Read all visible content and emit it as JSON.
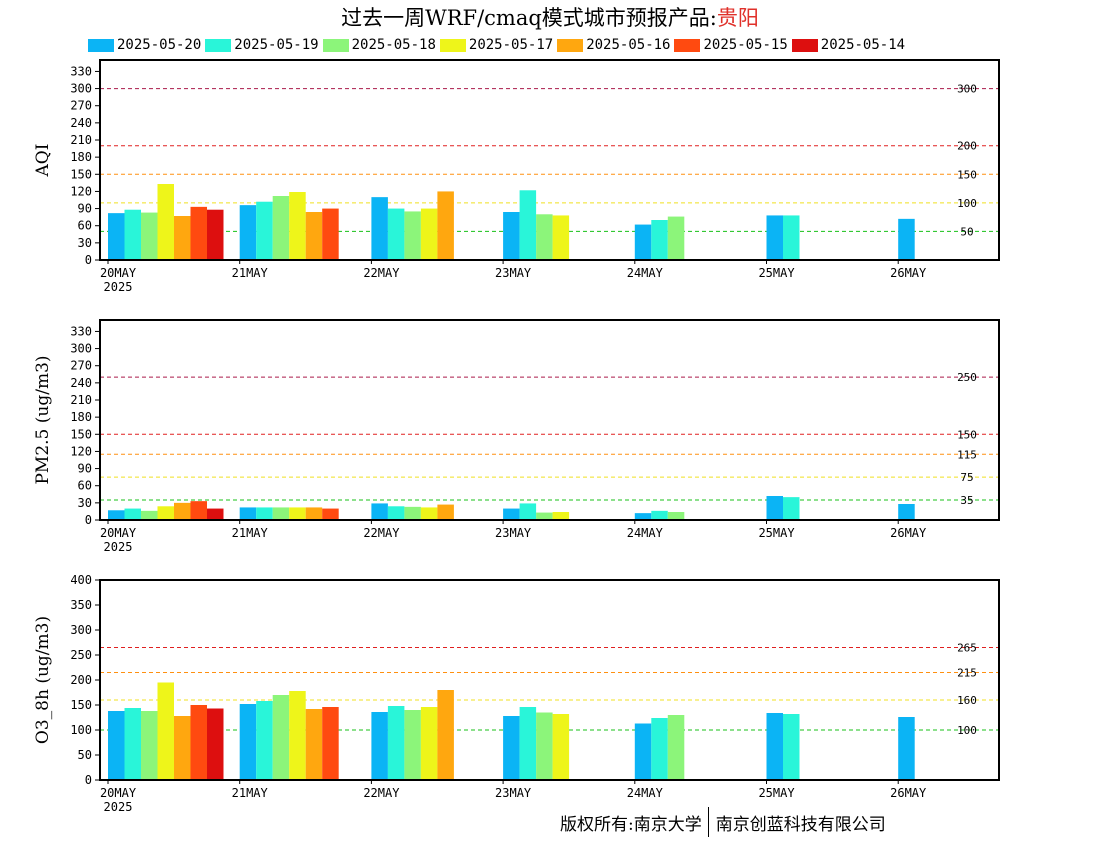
{
  "title": {
    "prefix": "过去一周WRF/cmaq模式城市预报产品:",
    "city": "贵阳"
  },
  "copyright": {
    "left": "版权所有:南京大学",
    "right": "南京创蓝科技有限公司"
  },
  "legend": [
    {
      "label": "2025-05-20",
      "color": "#0bb4f5"
    },
    {
      "label": "2025-05-19",
      "color": "#29f5d9"
    },
    {
      "label": "2025-05-18",
      "color": "#8cf57a"
    },
    {
      "label": "2025-05-17",
      "color": "#eef51a"
    },
    {
      "label": "2025-05-16",
      "color": "#ffa70f"
    },
    {
      "label": "2025-05-15",
      "color": "#ff4a10"
    },
    {
      "label": "2025-05-14",
      "color": "#dd0f0f"
    }
  ],
  "chart_data": [
    {
      "type": "bar",
      "ylabel": "AQI",
      "ylim": [
        0,
        350
      ],
      "yticks": [
        0,
        30,
        60,
        90,
        120,
        150,
        180,
        210,
        240,
        270,
        300,
        330
      ],
      "xlabels": [
        "20MAY",
        "21MAY",
        "22MAY",
        "23MAY",
        "24MAY",
        "25MAY",
        "26MAY"
      ],
      "x_year_label": "2025",
      "refs": [
        {
          "value": 300,
          "label": "300",
          "color": "#aa1a4a"
        },
        {
          "value": 200,
          "label": "200",
          "color": "#e02020"
        },
        {
          "value": 150,
          "label": "150",
          "color": "#ff9010"
        },
        {
          "value": 100,
          "label": "100",
          "color": "#f0e020"
        },
        {
          "value": 50,
          "label": "50",
          "color": "#18c018"
        }
      ],
      "days": [
        [
          82,
          88,
          83,
          133,
          77,
          93,
          88
        ],
        [
          96,
          102,
          112,
          119,
          84,
          90
        ],
        [
          110,
          90,
          85,
          90,
          120
        ],
        [
          84,
          122,
          80,
          78
        ],
        [
          62,
          70,
          76
        ],
        [
          78,
          78
        ],
        [
          72
        ]
      ]
    },
    {
      "type": "bar",
      "ylabel": "PM2.5 (ug/m3)",
      "ylim": [
        0,
        350
      ],
      "yticks": [
        0,
        30,
        60,
        90,
        120,
        150,
        180,
        210,
        240,
        270,
        300,
        330
      ],
      "xlabels": [
        "20MAY",
        "21MAY",
        "22MAY",
        "23MAY",
        "24MAY",
        "25MAY",
        "26MAY"
      ],
      "x_year_label": "2025",
      "refs": [
        {
          "value": 250,
          "label": "250",
          "color": "#aa1a4a"
        },
        {
          "value": 150,
          "label": "150",
          "color": "#e02020"
        },
        {
          "value": 115,
          "label": "115",
          "color": "#ff9010"
        },
        {
          "value": 75,
          "label": "75",
          "color": "#f0e020"
        },
        {
          "value": 35,
          "label": "35",
          "color": "#18c018"
        }
      ],
      "days": [
        [
          17,
          20,
          16,
          24,
          30,
          33,
          20
        ],
        [
          22,
          22,
          22,
          22,
          22,
          20
        ],
        [
          29,
          24,
          23,
          22,
          27
        ],
        [
          20,
          29,
          13,
          14
        ],
        [
          12,
          16,
          14
        ],
        [
          42,
          40
        ],
        [
          28
        ]
      ]
    },
    {
      "type": "bar",
      "ylabel": "O3_8h (ug/m3)",
      "ylim": [
        0,
        400
      ],
      "yticks": [
        0,
        50,
        100,
        150,
        200,
        250,
        300,
        350,
        400
      ],
      "xlabels": [
        "20MAY",
        "21MAY",
        "22MAY",
        "23MAY",
        "24MAY",
        "25MAY",
        "26MAY"
      ],
      "x_year_label": "2025",
      "refs": [
        {
          "value": 265,
          "label": "265",
          "color": "#e02020"
        },
        {
          "value": 215,
          "label": "215",
          "color": "#ff9010"
        },
        {
          "value": 160,
          "label": "160",
          "color": "#f0e020"
        },
        {
          "value": 100,
          "label": "100",
          "color": "#18c018"
        }
      ],
      "days": [
        [
          138,
          144,
          138,
          195,
          128,
          150,
          143
        ],
        [
          152,
          158,
          170,
          178,
          142,
          146
        ],
        [
          136,
          148,
          140,
          146,
          180
        ],
        [
          128,
          146,
          135,
          132
        ],
        [
          113,
          124,
          130
        ],
        [
          134,
          132
        ],
        [
          126
        ]
      ]
    }
  ]
}
